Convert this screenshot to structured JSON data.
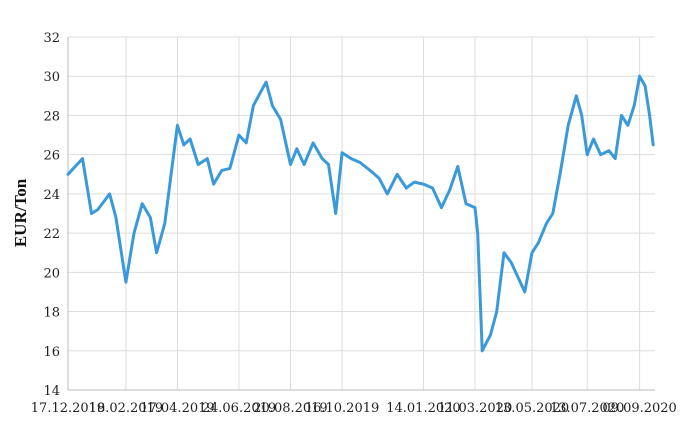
{
  "chart_data": {
    "type": "line",
    "title": "",
    "xlabel": "",
    "ylabel": "EUR/Ton",
    "ylim": [
      14,
      32
    ],
    "yticks": [
      14,
      16,
      18,
      20,
      22,
      24,
      26,
      28,
      30,
      32
    ],
    "xticks": [
      "17.12.2018",
      "19.02.2019",
      "17.04.2019",
      "24.06.2019",
      "20.08.2019",
      "16.10.2019",
      "14.01.2020",
      "11.03.2020",
      "13.05.2020",
      "13.07.2020",
      "09.09.2020"
    ],
    "grid": true,
    "legend": "none",
    "series": [
      {
        "color": "#3a9ad9",
        "x": [
          "17.12.2018",
          "02.01.2019",
          "12.01.2019",
          "19.01.2019",
          "01.02.2019",
          "08.02.2019",
          "19.02.2019",
          "28.02.2019",
          "09.03.2019",
          "18.03.2019",
          "25.03.2019",
          "03.04.2019",
          "10.04.2019",
          "17.04.2019",
          "24.04.2019",
          "01.05.2019",
          "10.05.2019",
          "20.05.2019",
          "27.05.2019",
          "05.06.2019",
          "14.06.2019",
          "24.06.2019",
          "02.07.2019",
          "10.07.2019",
          "18.07.2019",
          "24.07.2019",
          "31.07.2019",
          "09.08.2019",
          "20.08.2019",
          "27.08.2019",
          "04.09.2019",
          "14.09.2019",
          "24.09.2019",
          "01.10.2019",
          "09.10.2019",
          "16.10.2019",
          "26.10.2019",
          "05.11.2019",
          "16.11.2019",
          "26.11.2019",
          "05.12.2019",
          "16.12.2019",
          "26.12.2019",
          "04.01.2020",
          "14.01.2020",
          "24.01.2020",
          "03.02.2020",
          "12.02.2020",
          "21.02.2020",
          "01.03.2020",
          "11.03.2020",
          "14.03.2020",
          "19.03.2020",
          "28.03.2020",
          "04.04.2020",
          "12.04.2020",
          "20.04.2020",
          "27.04.2020",
          "05.05.2020",
          "13.05.2020",
          "20.05.2020",
          "29.05.2020",
          "05.06.2020",
          "13.06.2020",
          "22.06.2020",
          "01.07.2020",
          "07.07.2020",
          "13.07.2020",
          "20.07.2020",
          "28.07.2020",
          "06.08.2020",
          "13.08.2020",
          "20.08.2020",
          "27.08.2020",
          "03.09.2020",
          "09.09.2020",
          "15.09.2020",
          "20.09.2020",
          "24.09.2020"
        ],
        "y": [
          25.0,
          25.8,
          23.0,
          23.2,
          24.0,
          22.8,
          19.5,
          22.0,
          23.5,
          22.8,
          21.0,
          22.5,
          25.0,
          27.5,
          26.5,
          26.8,
          25.5,
          25.8,
          24.5,
          25.2,
          25.3,
          27.0,
          26.6,
          28.5,
          29.2,
          29.7,
          28.5,
          27.8,
          25.5,
          26.3,
          25.5,
          26.6,
          25.8,
          25.5,
          23.0,
          26.1,
          25.8,
          25.6,
          25.2,
          24.8,
          24.0,
          25.0,
          24.3,
          24.6,
          24.5,
          24.3,
          23.3,
          24.2,
          25.4,
          23.5,
          23.3,
          22.0,
          16.0,
          16.8,
          18.0,
          21.0,
          20.5,
          19.8,
          19.0,
          21.0,
          21.5,
          22.5,
          23.0,
          25.0,
          27.5,
          29.0,
          28.0,
          26.0,
          26.8,
          26.0,
          26.2,
          25.8,
          28.0,
          27.5,
          28.5,
          30.0,
          29.5,
          28.0,
          26.5
        ]
      }
    ]
  }
}
